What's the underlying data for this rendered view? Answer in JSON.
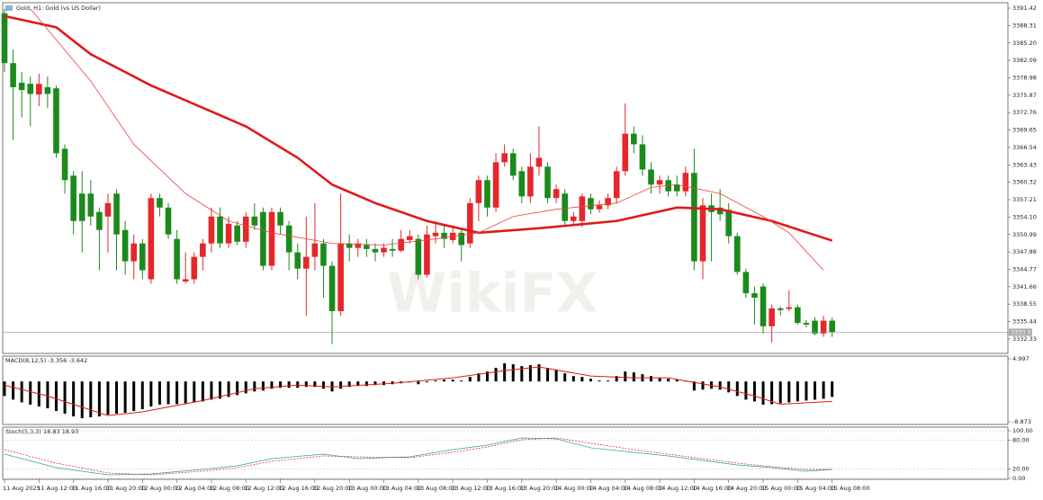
{
  "chart_data": [
    {
      "type": "candlestick",
      "title": "Gold, H1: Gold (vs US Dollar)",
      "watermark": "WikiFX",
      "up_color": "#e5262b",
      "down_color": "#1b8a1b",
      "categories": [
        "11 Aug 2025",
        null,
        null,
        null,
        "11 Aug 12:00",
        null,
        null,
        null,
        "11 Aug 16:00",
        null,
        null,
        null,
        "11 Aug 20:00",
        null,
        null,
        null,
        "12 Aug 00:00",
        null,
        null,
        null,
        "12 Aug 04:00",
        null,
        null,
        null,
        "12 Aug 08:00",
        null,
        null,
        null,
        "12 Aug 12:00",
        null,
        null,
        null,
        "12 Aug 16:00",
        null,
        null,
        null,
        "12 Aug 20:00",
        null,
        null,
        null,
        "13 Aug 00:00",
        null,
        null,
        null,
        "13 Aug 04:00",
        null,
        null,
        null,
        "13 Aug 08:00",
        null,
        null,
        null,
        "13 Aug 12:00",
        null,
        null,
        null,
        "13 Aug 16:00",
        null,
        null,
        null,
        "13 Aug 20:00",
        null,
        null,
        null,
        "14 Aug 00:00",
        null,
        null,
        null,
        "14 Aug 04:00",
        null,
        null,
        null,
        "14 Aug 08:00",
        null,
        null,
        null,
        "14 Aug 12:00",
        null,
        null,
        null,
        "14 Aug 16:00",
        null,
        null,
        null,
        "14 Aug 20:00",
        null,
        null,
        null,
        "15 Aug 00:00",
        null,
        null,
        null,
        "15 Aug 04:00",
        null,
        null,
        null,
        "15 Aug 08:00"
      ],
      "candles": [
        [
          3390.5,
          3391.3,
          3380.0,
          3381.6
        ],
        [
          3381.6,
          3384.0,
          3367.9,
          3377.3
        ],
        [
          3378.1,
          3380.0,
          3371.9,
          3376.8
        ],
        [
          3377.9,
          3379.2,
          3370.3,
          3376.1
        ],
        [
          3376.0,
          3379.7,
          3373.9,
          3377.9
        ],
        [
          3377.3,
          3379.2,
          3373.6,
          3376.1
        ],
        [
          3377.1,
          3377.6,
          3364.7,
          3365.5
        ],
        [
          3366.3,
          3367.1,
          3358.3,
          3360.7
        ],
        [
          3361.5,
          3362.3,
          3351.0,
          3353.4
        ],
        [
          3358.3,
          3362.3,
          3347.8,
          3353.4
        ],
        [
          3358.3,
          3360.7,
          3352.6,
          3354.2
        ],
        [
          3355.0,
          3355.8,
          3344.6,
          3351.8
        ],
        [
          3354.2,
          3358.3,
          3347.8,
          3356.6
        ],
        [
          3358.3,
          3359.1,
          3344.6,
          3351.0
        ],
        [
          3351.8,
          3353.4,
          3343.8,
          3346.2
        ],
        [
          3346.2,
          3351.0,
          3343.0,
          3349.4
        ],
        [
          3349.4,
          3350.2,
          3343.0,
          3344.6
        ],
        [
          3343.0,
          3358.3,
          3342.2,
          3357.5
        ],
        [
          3357.5,
          3358.3,
          3354.2,
          3355.8
        ],
        [
          3355.8,
          3356.6,
          3350.2,
          3351.0
        ],
        [
          3350.2,
          3351.8,
          3342.2,
          3343.0
        ],
        [
          3342.6,
          3347.8,
          3342.2,
          3343.0
        ],
        [
          3343.0,
          3347.8,
          3342.2,
          3347.0
        ],
        [
          3347.0,
          3350.2,
          3344.6,
          3349.4
        ],
        [
          3349.4,
          3355.8,
          3347.8,
          3354.2
        ],
        [
          3354.2,
          3355.8,
          3348.6,
          3349.4
        ],
        [
          3349.4,
          3354.2,
          3348.6,
          3352.9
        ],
        [
          3352.6,
          3353.4,
          3349.1,
          3349.7
        ],
        [
          3349.7,
          3355.0,
          3348.6,
          3354.2
        ],
        [
          3354.2,
          3356.6,
          3351.8,
          3352.6
        ],
        [
          3355.0,
          3355.8,
          3344.6,
          3345.4
        ],
        [
          3345.4,
          3355.8,
          3344.6,
          3355.0
        ],
        [
          3355.0,
          3355.8,
          3351.0,
          3352.6
        ],
        [
          3352.6,
          3353.4,
          3344.6,
          3347.8
        ],
        [
          3347.8,
          3349.4,
          3343.0,
          3344.9
        ],
        [
          3344.9,
          3354.2,
          3336.5,
          3347.0
        ],
        [
          3347.0,
          3356.6,
          3344.6,
          3349.4
        ],
        [
          3349.4,
          3350.2,
          3339.7,
          3345.4
        ],
        [
          3345.4,
          3346.2,
          3331.4,
          3337.3
        ],
        [
          3337.3,
          3358.3,
          3336.5,
          3349.4
        ],
        [
          3349.4,
          3351.0,
          3346.2,
          3348.6
        ],
        [
          3348.6,
          3350.2,
          3347.0,
          3349.4
        ],
        [
          3349.1,
          3350.2,
          3347.0,
          3348.4
        ],
        [
          3348.4,
          3349.4,
          3346.2,
          3347.8
        ],
        [
          3347.8,
          3349.4,
          3347.0,
          3348.6
        ],
        [
          3348.4,
          3350.2,
          3347.0,
          3348.1
        ],
        [
          3348.1,
          3351.8,
          3347.8,
          3350.2
        ],
        [
          3350.0,
          3351.8,
          3349.4,
          3350.7
        ],
        [
          3350.2,
          3351.0,
          3343.0,
          3343.8
        ],
        [
          3343.8,
          3352.6,
          3343.3,
          3351.0
        ],
        [
          3350.7,
          3353.4,
          3349.4,
          3351.3
        ],
        [
          3351.3,
          3352.6,
          3348.6,
          3350.2
        ],
        [
          3350.0,
          3352.6,
          3349.4,
          3351.3
        ],
        [
          3351.3,
          3351.8,
          3346.2,
          3349.1
        ],
        [
          3349.4,
          3357.5,
          3348.6,
          3356.6
        ],
        [
          3356.6,
          3361.5,
          3353.4,
          3360.7
        ],
        [
          3360.7,
          3361.5,
          3354.2,
          3355.8
        ],
        [
          3355.8,
          3365.5,
          3355.0,
          3363.9
        ],
        [
          3363.9,
          3367.1,
          3363.1,
          3365.5
        ],
        [
          3365.5,
          3366.3,
          3360.7,
          3361.5
        ],
        [
          3362.3,
          3363.1,
          3356.6,
          3357.8
        ],
        [
          3357.8,
          3365.5,
          3356.6,
          3363.1
        ],
        [
          3363.1,
          3370.3,
          3361.5,
          3364.7
        ],
        [
          3363.1,
          3363.9,
          3356.6,
          3357.5
        ],
        [
          3357.5,
          3359.9,
          3356.6,
          3359.1
        ],
        [
          3358.3,
          3359.1,
          3352.6,
          3353.4
        ],
        [
          3353.4,
          3355.0,
          3352.9,
          3354.2
        ],
        [
          3353.4,
          3358.3,
          3352.3,
          3357.8
        ],
        [
          3357.5,
          3358.3,
          3354.6,
          3355.5
        ],
        [
          3355.5,
          3357.1,
          3354.9,
          3356.2
        ],
        [
          3356.2,
          3358.3,
          3355.5,
          3357.5
        ],
        [
          3357.5,
          3363.1,
          3356.6,
          3362.3
        ],
        [
          3362.3,
          3374.4,
          3361.5,
          3369.0
        ],
        [
          3369.0,
          3370.3,
          3365.5,
          3367.1
        ],
        [
          3367.1,
          3368.7,
          3361.5,
          3362.6
        ],
        [
          3362.6,
          3363.9,
          3358.3,
          3359.9
        ],
        [
          3359.9,
          3361.5,
          3358.3,
          3360.7
        ],
        [
          3360.7,
          3361.5,
          3357.8,
          3358.7
        ],
        [
          3359.9,
          3361.5,
          3357.8,
          3358.7
        ],
        [
          3358.7,
          3363.1,
          3357.8,
          3362.0
        ],
        [
          3362.0,
          3366.3,
          3344.6,
          3346.2
        ],
        [
          3346.2,
          3357.5,
          3343.0,
          3356.2
        ],
        [
          3356.2,
          3358.3,
          3346.2,
          3355.0
        ],
        [
          3355.8,
          3359.1,
          3353.4,
          3354.6
        ],
        [
          3355.4,
          3356.6,
          3349.4,
          3350.7
        ],
        [
          3350.7,
          3351.3,
          3343.8,
          3344.3
        ],
        [
          3344.3,
          3344.9,
          3339.7,
          3340.5
        ],
        [
          3340.5,
          3341.7,
          3334.9,
          3339.7
        ],
        [
          3341.7,
          3342.2,
          3333.3,
          3334.6
        ],
        [
          3334.6,
          3338.5,
          3331.7,
          3337.8
        ],
        [
          3337.8,
          3338.1,
          3336.5,
          3337.5
        ],
        [
          3337.7,
          3341.0,
          3337.3,
          3338.0
        ],
        [
          3338.0,
          3338.5,
          3334.9,
          3335.2
        ],
        [
          3335.2,
          3335.7,
          3334.4,
          3334.9
        ],
        [
          3335.6,
          3336.2,
          3333.0,
          3333.3
        ],
        [
          3333.3,
          3336.5,
          3332.7,
          3335.6
        ],
        [
          3335.6,
          3336.2,
          3332.7,
          3333.53
        ]
      ],
      "lines": [
        {
          "color": "#e0191b",
          "width": 2.6,
          "x": [
            0,
            6,
            10,
            17,
            28,
            34,
            38,
            43,
            49,
            55,
            62,
            71,
            78,
            83,
            89,
            96
          ],
          "values": [
            3390.0,
            3388.0,
            3383.2,
            3377.6,
            3370.3,
            3364.7,
            3359.9,
            3356.6,
            3353.4,
            3351.3,
            3352.1,
            3353.4,
            3355.8,
            3355.5,
            3353.4,
            3349.9
          ]
        },
        {
          "color": "#e8463e",
          "width": 0.8,
          "x": [
            3,
            10,
            15,
            21,
            26,
            31,
            38,
            44,
            50,
            55,
            59,
            64,
            71,
            75,
            78,
            83,
            88,
            91,
            95
          ],
          "values": [
            3391.3,
            3378.4,
            3367.1,
            3358.3,
            3353.4,
            3351.3,
            3349.4,
            3349.1,
            3350.2,
            3351.3,
            3354.2,
            3355.5,
            3356.6,
            3359.4,
            3359.9,
            3358.3,
            3354.2,
            3351.3,
            3344.6
          ]
        }
      ],
      "last_price": 3333.53,
      "ylim": [
        3329.75,
        3392.39
      ],
      "yticks": [
        3391.42,
        3388.31,
        {
          "value": 3385.2,
          "label": "3385.20"
        },
        3382.09,
        3378.98,
        3375.87,
        3372.76,
        3369.65,
        3366.54,
        3363.43,
        3360.32,
        3357.21,
        {
          "value": 3354.1,
          "label": "3354.10"
        },
        3350.99,
        3347.88,
        3344.77,
        3341.66,
        3338.55,
        3335.44,
        3332.33
      ]
    },
    {
      "type": "macd",
      "title": "MACD(8,12,5) -3.356 -3.642",
      "color": "#000000",
      "values": [
        -3.2,
        -4.0,
        -4.6,
        -5.1,
        -5.5,
        -5.9,
        -6.5,
        -7.1,
        -7.7,
        -8.1,
        -7.9,
        -7.7,
        -7.3,
        -7.1,
        -6.9,
        -6.5,
        -6.1,
        -5.5,
        -5.1,
        -5.0,
        -5.0,
        -4.8,
        -4.6,
        -4.4,
        -4.0,
        -3.8,
        -3.4,
        -3.0,
        -2.6,
        -2.2,
        -2.0,
        -1.6,
        -1.4,
        -1.4,
        -1.4,
        -1.2,
        -1.2,
        -1.6,
        -2.2,
        -1.6,
        -1.2,
        -1.0,
        -1.0,
        -0.8,
        -0.8,
        -0.6,
        -0.4,
        -0.2,
        -0.6,
        -0.2,
        0.2,
        0.4,
        0.4,
        0.2,
        1.0,
        1.8,
        2.2,
        3.0,
        4.0,
        3.8,
        3.4,
        3.6,
        3.8,
        3.0,
        2.6,
        1.8,
        1.2,
        1.0,
        0.6,
        0.2,
        0.2,
        1.2,
        2.2,
        2.0,
        1.6,
        1.2,
        0.8,
        0.6,
        0.4,
        0.2,
        -2.0,
        -1.8,
        -1.6,
        -1.8,
        -2.4,
        -3.2,
        -4.0,
        -4.4,
        -5.1,
        -5.0,
        -4.8,
        -4.6,
        -4.4,
        -4.2,
        -4.0,
        -3.8,
        -3.4
      ],
      "lines": [
        {
          "color": "#e0191b",
          "width": 1,
          "x": [
            0,
            5,
            12,
            16,
            23,
            29,
            34,
            38,
            45,
            52,
            58,
            62,
            68,
            73,
            77,
            83,
            87,
            90,
            96
          ],
          "values": [
            -0.8,
            -3.2,
            -7.5,
            -6.7,
            -4.2,
            -1.6,
            -0.8,
            -1.2,
            -0.4,
            0.8,
            2.4,
            3.2,
            1.2,
            0.8,
            0.8,
            -1.2,
            -3.2,
            -5.0,
            -4.4
          ]
        }
      ],
      "ylim": [
        -9.47,
        5.59
      ],
      "yticks": [
        -8.873,
        4.997
      ]
    },
    {
      "type": "stochastic",
      "title": "Stoch(5,3,3) 18.83 18.93",
      "lines": [
        {
          "color": "#2aa58a",
          "width": 0.7,
          "dash": false,
          "x": [
            0,
            6,
            12,
            17,
            23,
            27,
            31,
            37,
            41,
            47,
            52,
            56,
            60,
            64,
            68,
            73,
            77,
            81,
            85,
            89,
            93,
            96
          ],
          "values": [
            50.9,
            22.6,
            7.5,
            9.4,
            18.9,
            26.4,
            41.5,
            50.9,
            41.5,
            45.3,
            60.4,
            69.8,
            84.9,
            83.0,
            64.2,
            54.7,
            47.2,
            37.7,
            28.3,
            22.6,
            15.1,
            18.8
          ]
        },
        {
          "color": "#e0191b",
          "width": 0.7,
          "dash": true,
          "x": [
            0,
            6,
            12,
            17,
            23,
            27,
            31,
            37,
            41,
            47,
            52,
            56,
            60,
            64,
            68,
            73,
            77,
            81,
            85,
            89,
            93,
            96
          ],
          "values": [
            60.4,
            32.1,
            11.3,
            7.5,
            15.1,
            22.6,
            35.8,
            47.2,
            45.3,
            43.4,
            54.7,
            66.0,
            81.1,
            84.9,
            73.6,
            60.4,
            50.9,
            41.5,
            32.1,
            24.5,
            18.9,
            18.9
          ]
        }
      ],
      "ylim": [
        -1.9,
        107.5
      ],
      "yticks": [
        {
          "value": 0,
          "label": "0.00"
        },
        {
          "value": 20,
          "label": "20.00"
        },
        {
          "value": 80,
          "label": "80.00"
        },
        {
          "value": 100,
          "label": "100.00"
        }
      ]
    }
  ]
}
